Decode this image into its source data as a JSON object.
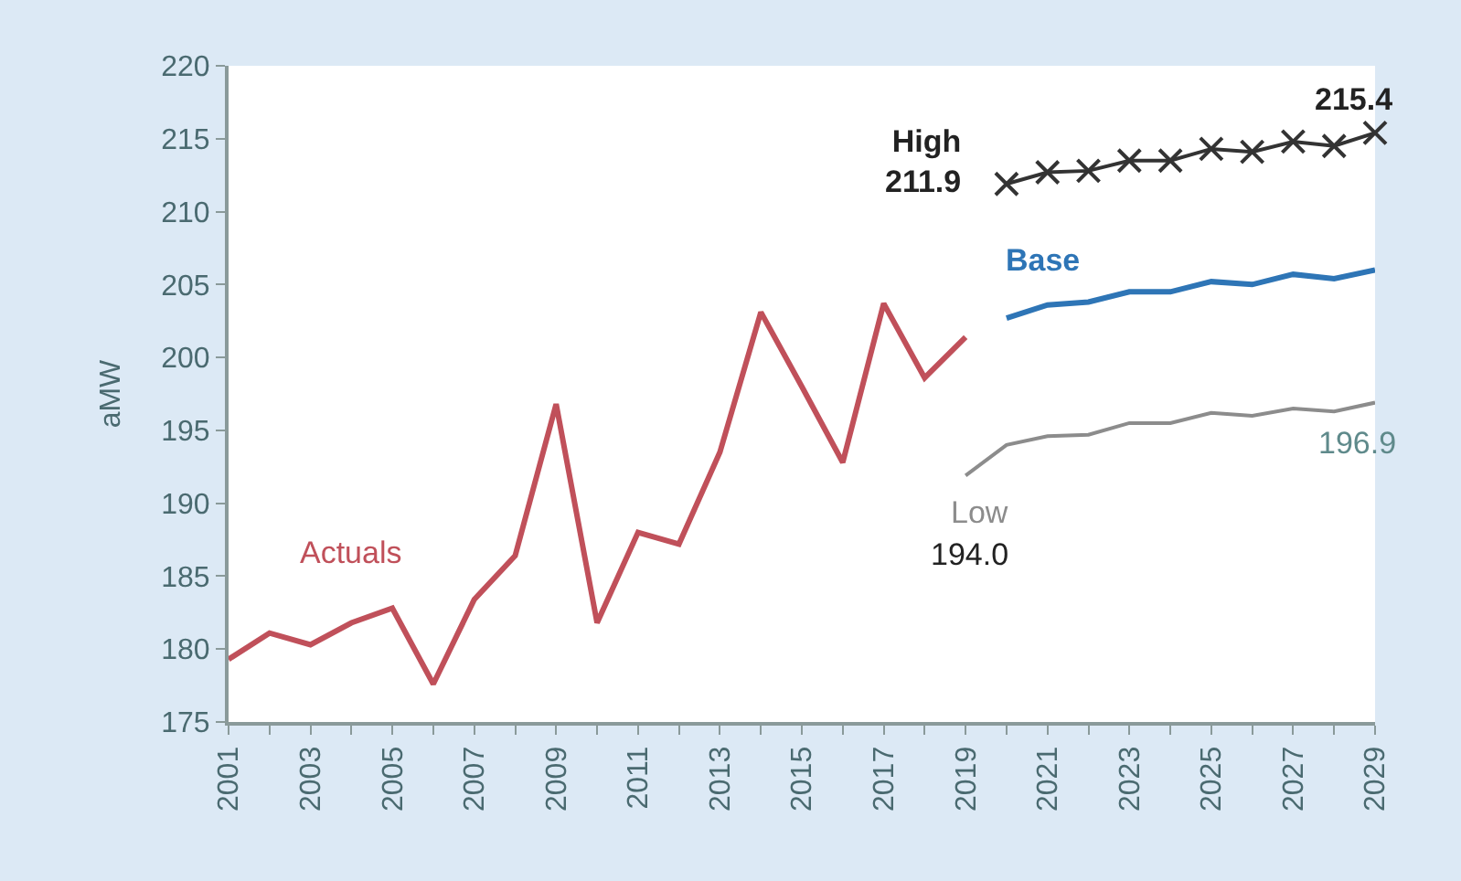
{
  "chart_data": {
    "type": "line",
    "ylabel": "aMW",
    "xlim": [
      2001,
      2029
    ],
    "ylim": [
      175,
      220
    ],
    "xticks": [
      2001,
      2003,
      2005,
      2007,
      2009,
      2011,
      2013,
      2015,
      2017,
      2019,
      2021,
      2023,
      2025,
      2027,
      2029
    ],
    "yticks": [
      175,
      180,
      185,
      190,
      195,
      200,
      205,
      210,
      215,
      220
    ],
    "grid": false,
    "legend": false,
    "series": [
      {
        "name": "Actuals",
        "color": "#c0505a",
        "x": [
          2001,
          2002,
          2003,
          2004,
          2005,
          2006,
          2007,
          2008,
          2009,
          2010,
          2011,
          2012,
          2013,
          2014,
          2015,
          2016,
          2017,
          2018,
          2019
        ],
        "values": [
          179.3,
          181.1,
          180.3,
          181.8,
          182.8,
          177.6,
          183.4,
          186.4,
          196.8,
          181.8,
          188.0,
          187.2,
          193.5,
          203.1,
          198.0,
          192.8,
          203.7,
          198.6,
          201.4
        ]
      },
      {
        "name": "Base",
        "color": "#2e75b6",
        "x": [
          2020,
          2021,
          2022,
          2023,
          2024,
          2025,
          2026,
          2027,
          2028,
          2029
        ],
        "values": [
          202.7,
          203.6,
          203.8,
          204.5,
          204.5,
          205.2,
          205.0,
          205.7,
          205.4,
          206.0
        ]
      },
      {
        "name": "High",
        "color": "#333333",
        "marker": "cross",
        "x": [
          2020,
          2021,
          2022,
          2023,
          2024,
          2025,
          2026,
          2027,
          2028,
          2029
        ],
        "values": [
          211.9,
          212.7,
          212.8,
          213.5,
          213.5,
          214.3,
          214.1,
          214.8,
          214.5,
          215.4
        ],
        "value_labels": [
          "211.9",
          null,
          null,
          null,
          null,
          null,
          null,
          null,
          null,
          "215.4"
        ]
      },
      {
        "name": "Low",
        "color": "#8c8c8c",
        "x": [
          2019,
          2020,
          2021,
          2022,
          2023,
          2024,
          2025,
          2026,
          2027,
          2028,
          2029
        ],
        "values": [
          191.9,
          194.0,
          194.6,
          194.7,
          195.5,
          195.5,
          196.2,
          196.0,
          196.5,
          196.3,
          196.9
        ],
        "value_labels": [
          null,
          "194.0",
          null,
          null,
          null,
          null,
          null,
          null,
          null,
          null,
          "196.9"
        ]
      }
    ]
  }
}
